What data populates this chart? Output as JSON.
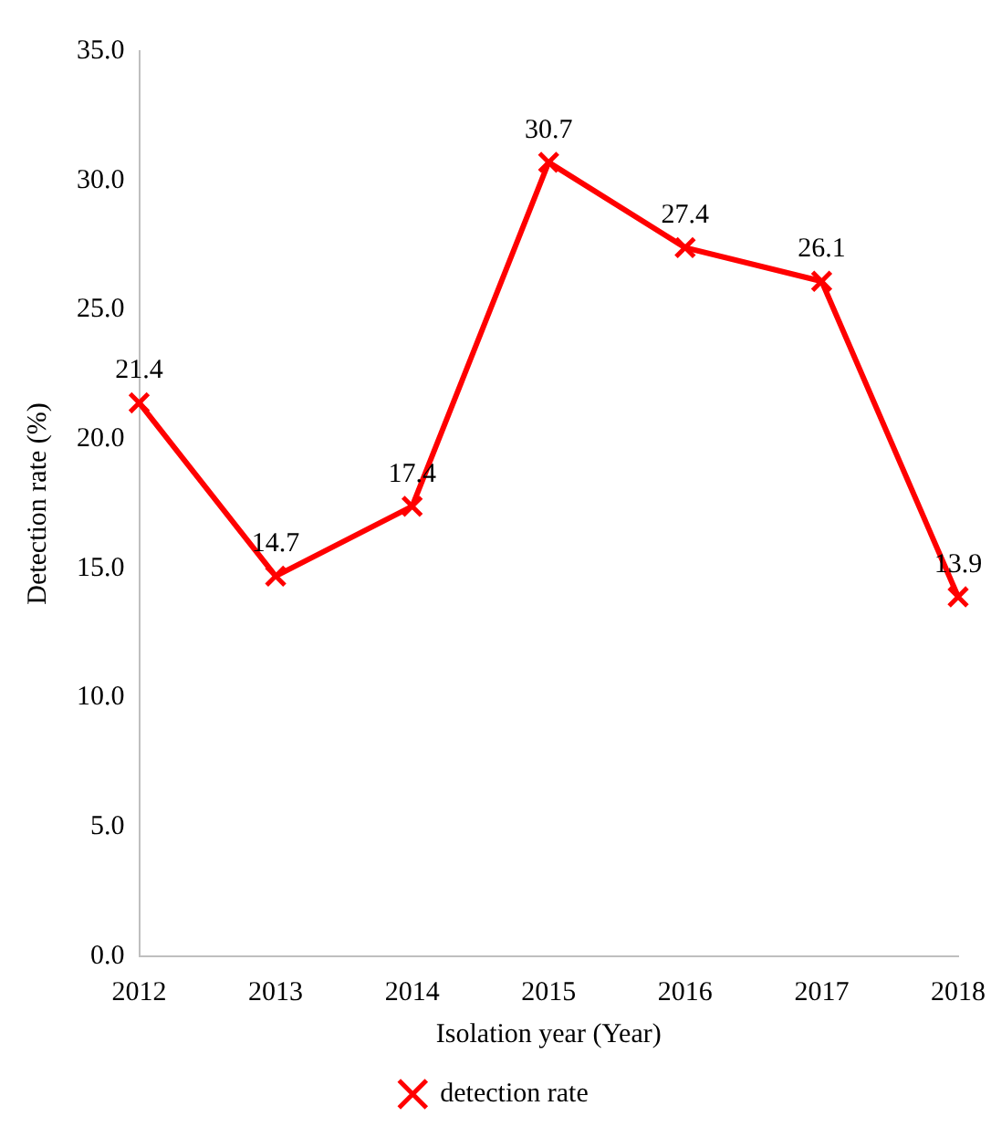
{
  "chart_data": {
    "type": "line",
    "xlabel": "Isolation year (Year)",
    "ylabel": "Detection rate (%)",
    "categories": [
      "2012",
      "2013",
      "2014",
      "2015",
      "2016",
      "2017",
      "2018"
    ],
    "series": [
      {
        "name": "detection rate",
        "color": "#ff0000",
        "values": [
          21.4,
          14.7,
          17.4,
          30.7,
          27.4,
          26.1,
          13.9
        ]
      }
    ],
    "ylim": [
      0,
      35
    ],
    "yticks": [
      {
        "value": 0,
        "label": "0.0"
      },
      {
        "value": 5,
        "label": "5.0"
      },
      {
        "value": 10,
        "label": "10.0"
      },
      {
        "value": 15,
        "label": "15.0"
      },
      {
        "value": 20,
        "label": "20.0"
      },
      {
        "value": 25,
        "label": "25.0"
      },
      {
        "value": 30,
        "label": "30.0"
      },
      {
        "value": 35,
        "label": "35.0"
      }
    ],
    "grid": false,
    "legend": "bottom",
    "marker": "cross",
    "line_style": "solid",
    "data_labels": true
  }
}
